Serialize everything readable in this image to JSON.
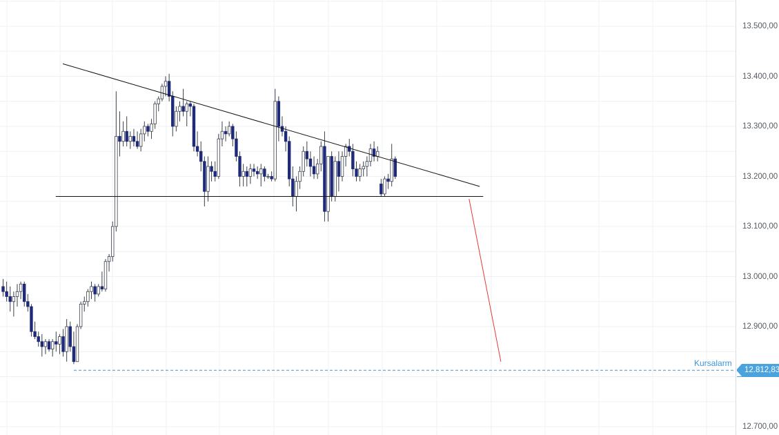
{
  "chart_data": {
    "type": "candlestick",
    "yaxis": {
      "ticks": [
        "13.500,00",
        "13.400,00",
        "13.300,00",
        "13.200,00",
        "13.100,00",
        "13.000,00",
        "12.900,00",
        "12.700,00"
      ],
      "tick_values": [
        13500,
        13400,
        13300,
        13200,
        13100,
        13000,
        12900,
        12700
      ],
      "ylim": [
        12680,
        13550
      ]
    },
    "grid": true,
    "alarm": {
      "label": "Kursalarm",
      "value": 12812.83,
      "display": "12.812,83"
    },
    "trendlines": [
      {
        "name": "resistance",
        "from": [
          17,
          13425
        ],
        "to": [
          135,
          13180
        ]
      },
      {
        "name": "support",
        "from": [
          15,
          13160
        ],
        "to": [
          136,
          13160
        ]
      }
    ],
    "projection": {
      "from": [
        132,
        13155
      ],
      "to": [
        141,
        12830
      ],
      "color": "#e53935"
    },
    "candles": [
      [
        0,
        12980,
        12995,
        12960,
        12970
      ],
      [
        1,
        12970,
        12990,
        12950,
        12960
      ],
      [
        2,
        12960,
        12980,
        12930,
        12950
      ],
      [
        3,
        12950,
        12970,
        12920,
        12960
      ],
      [
        4,
        12960,
        12985,
        12940,
        12970
      ],
      [
        5,
        12970,
        12990,
        12955,
        12985
      ],
      [
        6,
        12985,
        12990,
        12940,
        12950
      ],
      [
        7,
        12950,
        12965,
        12930,
        12940
      ],
      [
        8,
        12940,
        12945,
        12880,
        12890
      ],
      [
        9,
        12890,
        12910,
        12875,
        12880
      ],
      [
        10,
        12880,
        12890,
        12860,
        12870
      ],
      [
        11,
        12870,
        12885,
        12840,
        12860
      ],
      [
        12,
        12860,
        12875,
        12845,
        12870
      ],
      [
        13,
        12870,
        12875,
        12850,
        12855
      ],
      [
        14,
        12855,
        12875,
        12840,
        12870
      ],
      [
        15,
        12870,
        12890,
        12850,
        12865
      ],
      [
        16,
        12865,
        12885,
        12845,
        12880
      ],
      [
        17,
        12880,
        12895,
        12840,
        12850
      ],
      [
        18,
        12850,
        12915,
        12830,
        12900
      ],
      [
        19,
        12900,
        12910,
        12850,
        12860
      ],
      [
        20,
        12860,
        12890,
        12825,
        12830
      ],
      [
        21,
        12830,
        12905,
        12830,
        12900
      ],
      [
        22,
        12900,
        12950,
        12895,
        12945
      ],
      [
        23,
        12945,
        12960,
        12930,
        12950
      ],
      [
        24,
        12950,
        12975,
        12940,
        12970
      ],
      [
        25,
        12970,
        12990,
        12955,
        12980
      ],
      [
        26,
        12980,
        12985,
        12950,
        12965
      ],
      [
        27,
        12965,
        12985,
        12960,
        12980
      ],
      [
        28,
        12980,
        13010,
        12970,
        12975
      ],
      [
        29,
        12975,
        13035,
        12970,
        13030
      ],
      [
        30,
        13030,
        13045,
        13010,
        13040
      ],
      [
        31,
        13040,
        13110,
        13030,
        13100
      ],
      [
        32,
        13100,
        13370,
        13090,
        13280
      ],
      [
        33,
        13280,
        13330,
        13240,
        13270
      ],
      [
        34,
        13270,
        13310,
        13260,
        13290
      ],
      [
        35,
        13290,
        13320,
        13260,
        13270
      ],
      [
        36,
        13270,
        13290,
        13255,
        13280
      ],
      [
        37,
        13280,
        13295,
        13260,
        13270
      ],
      [
        38,
        13270,
        13290,
        13255,
        13260
      ],
      [
        39,
        13260,
        13295,
        13250,
        13285
      ],
      [
        40,
        13285,
        13310,
        13270,
        13300
      ],
      [
        41,
        13300,
        13305,
        13280,
        13290
      ],
      [
        42,
        13290,
        13315,
        13275,
        13305
      ],
      [
        43,
        13305,
        13350,
        13295,
        13345
      ],
      [
        44,
        13345,
        13360,
        13330,
        13355
      ],
      [
        45,
        13355,
        13385,
        13350,
        13380
      ],
      [
        46,
        13380,
        13400,
        13360,
        13390
      ],
      [
        47,
        13390,
        13405,
        13350,
        13360
      ],
      [
        48,
        13360,
        13370,
        13280,
        13300
      ],
      [
        49,
        13300,
        13340,
        13290,
        13330
      ],
      [
        50,
        13330,
        13350,
        13310,
        13340
      ],
      [
        51,
        13340,
        13375,
        13320,
        13330
      ],
      [
        52,
        13330,
        13350,
        13300,
        13345
      ],
      [
        53,
        13345,
        13350,
        13320,
        13340
      ],
      [
        54,
        13340,
        13345,
        13250,
        13260
      ],
      [
        55,
        13260,
        13290,
        13240,
        13250
      ],
      [
        56,
        13250,
        13270,
        13210,
        13230
      ],
      [
        57,
        13230,
        13240,
        13140,
        13170
      ],
      [
        58,
        13170,
        13240,
        13150,
        13220
      ],
      [
        59,
        13220,
        13230,
        13190,
        13210
      ],
      [
        60,
        13210,
        13230,
        13190,
        13200
      ],
      [
        61,
        13200,
        13285,
        13195,
        13275
      ],
      [
        62,
        13275,
        13310,
        13260,
        13290
      ],
      [
        63,
        13290,
        13300,
        13270,
        13285
      ],
      [
        64,
        13285,
        13310,
        13280,
        13300
      ],
      [
        65,
        13300,
        13305,
        13260,
        13275
      ],
      [
        66,
        13275,
        13290,
        13230,
        13240
      ],
      [
        67,
        13240,
        13250,
        13180,
        13200
      ],
      [
        68,
        13200,
        13225,
        13180,
        13210
      ],
      [
        69,
        13210,
        13220,
        13180,
        13200
      ],
      [
        70,
        13200,
        13225,
        13185,
        13215
      ],
      [
        71,
        13215,
        13225,
        13200,
        13210
      ],
      [
        72,
        13210,
        13220,
        13195,
        13205
      ],
      [
        73,
        13205,
        13225,
        13180,
        13215
      ],
      [
        74,
        13215,
        13220,
        13190,
        13200
      ],
      [
        75,
        13200,
        13205,
        13195,
        13200
      ],
      [
        76,
        13200,
        13210,
        13190,
        13195
      ],
      [
        77,
        13195,
        13375,
        13190,
        13350
      ],
      [
        78,
        13350,
        13360,
        13270,
        13300
      ],
      [
        79,
        13300,
        13320,
        13280,
        13290
      ],
      [
        80,
        13290,
        13300,
        13250,
        13270
      ],
      [
        81,
        13270,
        13280,
        13180,
        13195
      ],
      [
        82,
        13195,
        13220,
        13140,
        13160
      ],
      [
        83,
        13160,
        13200,
        13130,
        13190
      ],
      [
        84,
        13190,
        13220,
        13175,
        13210
      ],
      [
        85,
        13210,
        13260,
        13200,
        13250
      ],
      [
        86,
        13250,
        13270,
        13220,
        13235
      ],
      [
        87,
        13235,
        13250,
        13200,
        13220
      ],
      [
        88,
        13220,
        13240,
        13195,
        13205
      ],
      [
        89,
        13205,
        13235,
        13195,
        13225
      ],
      [
        90,
        13225,
        13270,
        13210,
        13260
      ],
      [
        91,
        13260,
        13290,
        13110,
        13130
      ],
      [
        92,
        13130,
        13240,
        13110,
        13240
      ],
      [
        93,
        13240,
        13250,
        13150,
        13160
      ],
      [
        94,
        13160,
        13240,
        13150,
        13230
      ],
      [
        95,
        13230,
        13250,
        13170,
        13200
      ],
      [
        96,
        13200,
        13250,
        13190,
        13240
      ],
      [
        97,
        13240,
        13265,
        13220,
        13260
      ],
      [
        98,
        13260,
        13275,
        13240,
        13250
      ],
      [
        99,
        13250,
        13265,
        13200,
        13215
      ],
      [
        100,
        13215,
        13230,
        13190,
        13200
      ],
      [
        101,
        13200,
        13225,
        13190,
        13215
      ],
      [
        102,
        13215,
        13230,
        13200,
        13220
      ],
      [
        103,
        13220,
        13240,
        13200,
        13230
      ],
      [
        104,
        13230,
        13265,
        13220,
        13255
      ],
      [
        105,
        13255,
        13270,
        13230,
        13240
      ],
      [
        106,
        13240,
        13260,
        13230,
        13250
      ],
      [
        107,
        13185,
        13195,
        13160,
        13165
      ],
      [
        108,
        13165,
        13200,
        13160,
        13195
      ],
      [
        109,
        13195,
        13205,
        13175,
        13190
      ],
      [
        110,
        13190,
        13265,
        13180,
        13235
      ],
      [
        111,
        13235,
        13240,
        13195,
        13200
      ]
    ]
  }
}
